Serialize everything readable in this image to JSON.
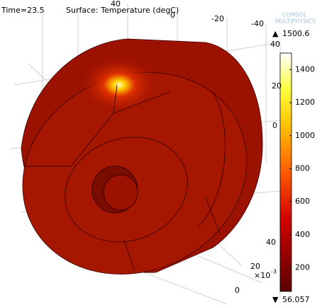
{
  "chart_data": {
    "type": "surface3d",
    "time_label": "Time=23.5",
    "title": "Surface: Temperature (degC)",
    "logo": [
      "COMSOL",
      "MULTIPHYSICS"
    ],
    "colorbar": {
      "clim": [
        56.057,
        1500.6
      ],
      "ticks": [
        200,
        400,
        600,
        800,
        1000,
        1200,
        1400
      ]
    },
    "max_value": 1500.6,
    "min_value": 56.057,
    "axis_ticks": {
      "top": [
        40,
        0,
        -20,
        -40
      ],
      "right": [
        40,
        20,
        0
      ],
      "bottom": [
        40,
        20,
        0
      ]
    },
    "exponent_base": "×10",
    "exponent_power": "-3"
  }
}
